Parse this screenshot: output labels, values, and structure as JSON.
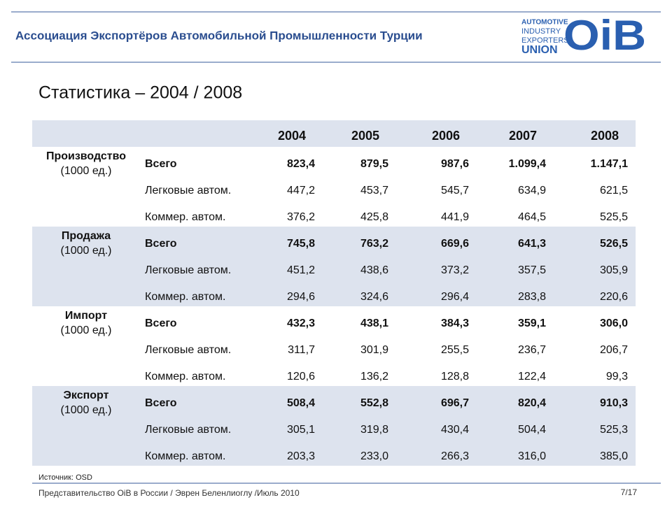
{
  "header": {
    "title": "Ассоциация Экспортёров Автомобильной Промышленности Турции"
  },
  "logo": {
    "lines": [
      "AUTOMOTIVE",
      "INDUSTRY",
      "EXPORTERS'",
      "UNION"
    ],
    "mark": "OiB"
  },
  "subtitle": "Статистика – 2004 / 2008",
  "table": {
    "years": [
      "2004",
      "2005",
      "2006",
      "2007",
      "2008"
    ],
    "groups": [
      {
        "label": "Производство",
        "unit": "(1000 ед.)",
        "rows": [
          {
            "label": "Всего",
            "values": [
              "823,4",
              "879,5",
              "987,6",
              "1.099,4",
              "1.147,1"
            ]
          },
          {
            "label": "Легковые автом.",
            "values": [
              "447,2",
              "453,7",
              "545,7",
              "634,9",
              "621,5"
            ]
          },
          {
            "label": "Коммер. автом.",
            "values": [
              "376,2",
              "425,8",
              "441,9",
              "464,5",
              "525,5"
            ]
          }
        ]
      },
      {
        "label": "Продажа",
        "unit": "(1000 ед.)",
        "rows": [
          {
            "label": "Всего",
            "values": [
              "745,8",
              "763,2",
              "669,6",
              "641,3",
              "526,5"
            ]
          },
          {
            "label": "Легковые автом.",
            "values": [
              "451,2",
              "438,6",
              "373,2",
              "357,5",
              "305,9"
            ]
          },
          {
            "label": "Коммер. автом.",
            "values": [
              "294,6",
              "324,6",
              "296,4",
              "283,8",
              "220,6"
            ]
          }
        ]
      },
      {
        "label": "Импорт",
        "unit": "(1000 ед.)",
        "rows": [
          {
            "label": "Всего",
            "values": [
              "432,3",
              "438,1",
              "384,3",
              "359,1",
              "306,0"
            ]
          },
          {
            "label": "Легковые автом.",
            "values": [
              "311,7",
              "301,9",
              "255,5",
              "236,7",
              "206,7"
            ]
          },
          {
            "label": "Коммер. автом.",
            "values": [
              "120,6",
              "136,2",
              "128,8",
              "122,4",
              "99,3"
            ]
          }
        ]
      },
      {
        "label": "Экспорт",
        "unit": "(1000 ед.)",
        "rows": [
          {
            "label": "Всего",
            "values": [
              "508,4",
              "552,8",
              "696,7",
              "820,4",
              "910,3"
            ]
          },
          {
            "label": "Легковые автом.",
            "values": [
              "305,1",
              "319,8",
              "430,4",
              "504,4",
              "525,3"
            ]
          },
          {
            "label": "Коммер. автом.",
            "values": [
              "203,3",
              "233,0",
              "266,3",
              "316,0",
              "385,0"
            ]
          }
        ]
      }
    ]
  },
  "source": "Источник: OSD",
  "footer": {
    "text": "Представительство OiB в России / Эврен Беленлиоглу  /Июль 2010",
    "page": "7/17"
  }
}
